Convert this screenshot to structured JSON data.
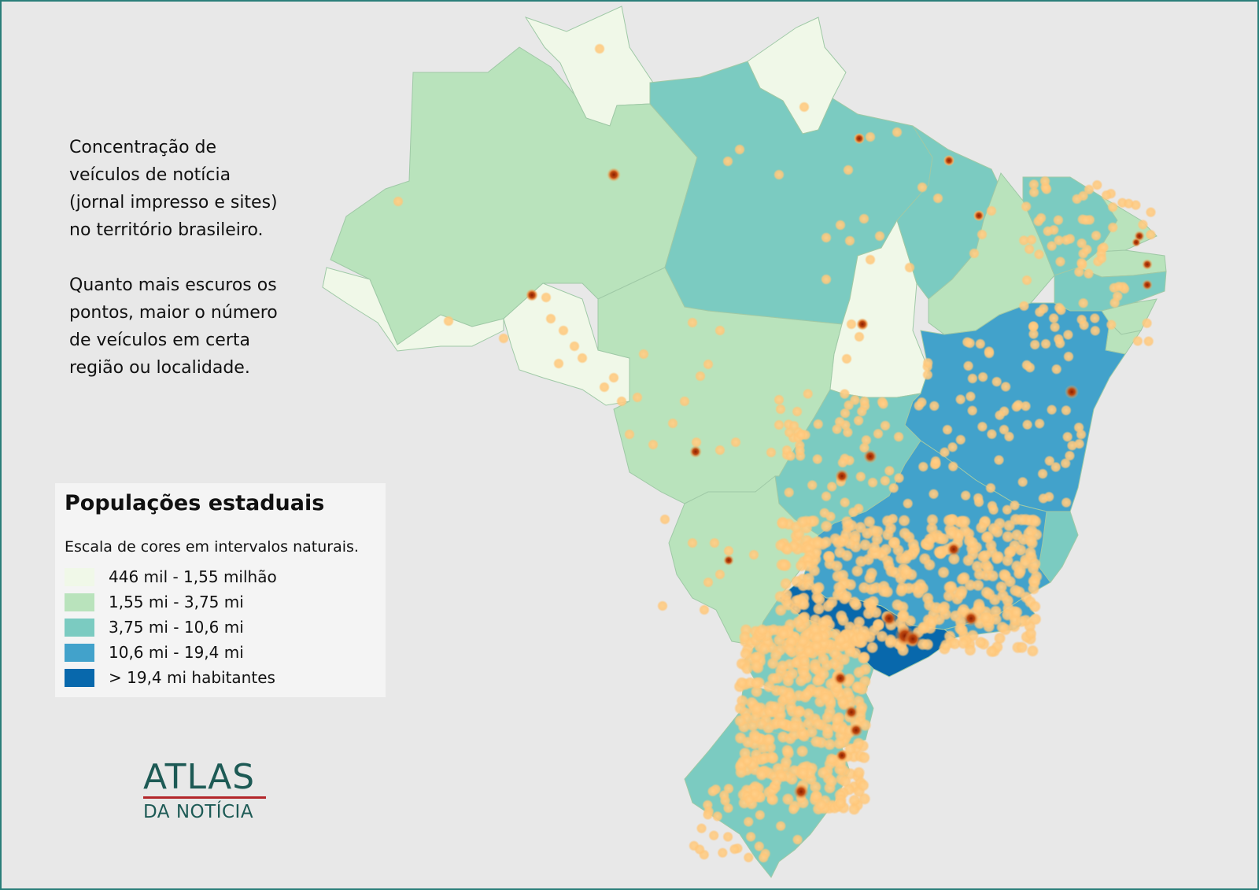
{
  "intro": {
    "line1": "Concentração de\nveículos de notícia\n(jornal impresso e sites)\nno território brasileiro.",
    "line2": "Quanto mais escuros os\npontos, maior o número\nde veículos em certa\nregião ou localidade."
  },
  "legend": {
    "title": "Populações estaduais",
    "subtitle": "Escala de cores em intervalos naturais.",
    "classes": [
      {
        "label": "446 mil - 1,55 milhão",
        "color": "#f0f8e8"
      },
      {
        "label": "1,55 mi - 3,75 mi",
        "color": "#b9e3bc"
      },
      {
        "label": "3,75 mi - 10,6 mi",
        "color": "#7bcbc1"
      },
      {
        "label": "10,6 mi - 19,4 mi",
        "color": "#42a2cb"
      },
      {
        "label": "> 19,4 mi habitantes",
        "color": "#0868ac"
      }
    ]
  },
  "logo": {
    "top": "ATLAS",
    "bottom": "DA NOTÍCIA"
  },
  "colors": {
    "background": "#e8e8e8",
    "border": "#2a7f7a",
    "point_light": "#ffd28a",
    "point_dark": "#a32a00"
  }
}
